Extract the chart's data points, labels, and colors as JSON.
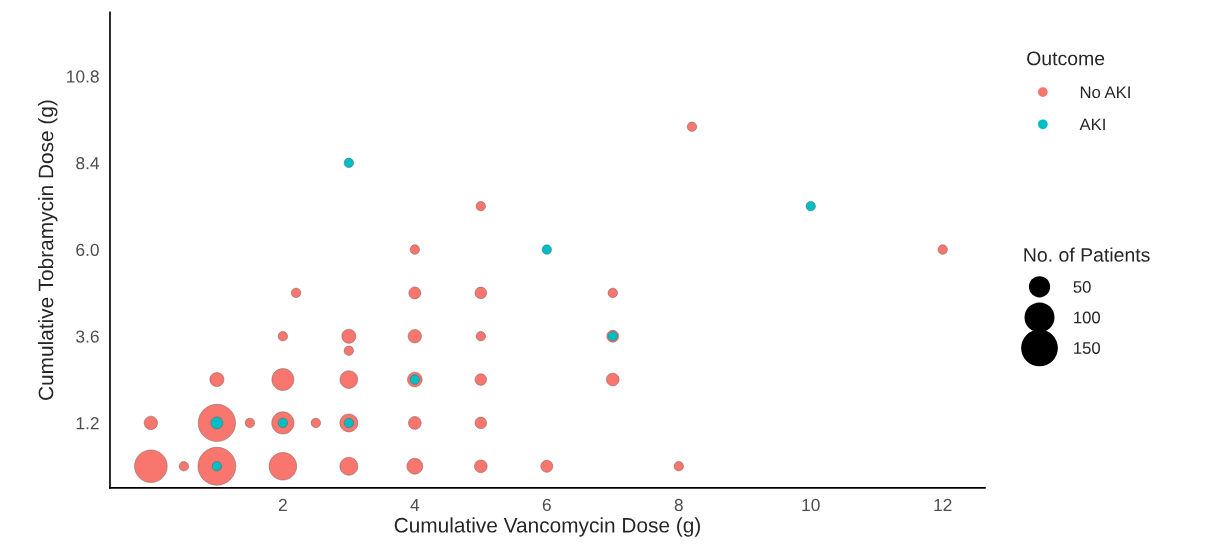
{
  "chart_data": {
    "type": "bubble",
    "xlabel": "Cumulative Vancomycin Dose (g)",
    "ylabel": "Cumulative Tobramycin Dose (g)",
    "legend_title": "Outcome",
    "annotations": [
      "No. of Patients"
    ],
    "xlim": [
      -0.62,
      12.64
    ],
    "ylim": [
      -0.6,
      12.57
    ],
    "xticks": [
      2,
      4,
      6,
      8,
      10,
      12
    ],
    "yticks": [
      1.2,
      3.6,
      {
        "value": 6.0,
        "label": "6.0"
      },
      8.4,
      10.8
    ],
    "size_legend": [
      50,
      100,
      150
    ],
    "grid": false,
    "legend": "right",
    "series": [
      {
        "name": "No AKI",
        "color": "#f8766d",
        "x": [
          0,
          0.5,
          1,
          2,
          3,
          4,
          5,
          6,
          8,
          0,
          1,
          1.5,
          2,
          2.5,
          3,
          4,
          5,
          1,
          2,
          3,
          4,
          5,
          7,
          3,
          2,
          3,
          4,
          5,
          7,
          2.2,
          4,
          5,
          7,
          4,
          12,
          5,
          8.2
        ],
        "values": [
          0,
          0,
          0,
          0,
          0,
          0,
          0,
          0,
          0,
          1.2,
          1.2,
          1.2,
          1.2,
          1.2,
          1.2,
          1.2,
          1.2,
          2.4,
          2.4,
          2.4,
          2.4,
          2.4,
          2.4,
          3.2,
          3.6,
          3.6,
          3.6,
          3.6,
          3.6,
          4.8,
          4.8,
          4.8,
          4.8,
          6.0,
          6.0,
          7.2,
          9.4
        ],
        "sizes": [
          119,
          10,
          160,
          85,
          36,
          28,
          18,
          16,
          10,
          20,
          155,
          10,
          55,
          10,
          36,
          18,
          15,
          22,
          54,
          35,
          24,
          15,
          18,
          10,
          10,
          22,
          20,
          10,
          16,
          10,
          16,
          15,
          10,
          10,
          10,
          10,
          10
        ]
      },
      {
        "name": "AKI",
        "color": "#00bfc4",
        "x": [
          1,
          1,
          2,
          3,
          4,
          7,
          6,
          3,
          10
        ],
        "values": [
          0,
          1.2,
          1.2,
          1.2,
          2.4,
          3.6,
          6.0,
          8.4,
          7.2
        ],
        "sizes": [
          10,
          16,
          10,
          10,
          10,
          10,
          10,
          10,
          10
        ]
      }
    ]
  }
}
